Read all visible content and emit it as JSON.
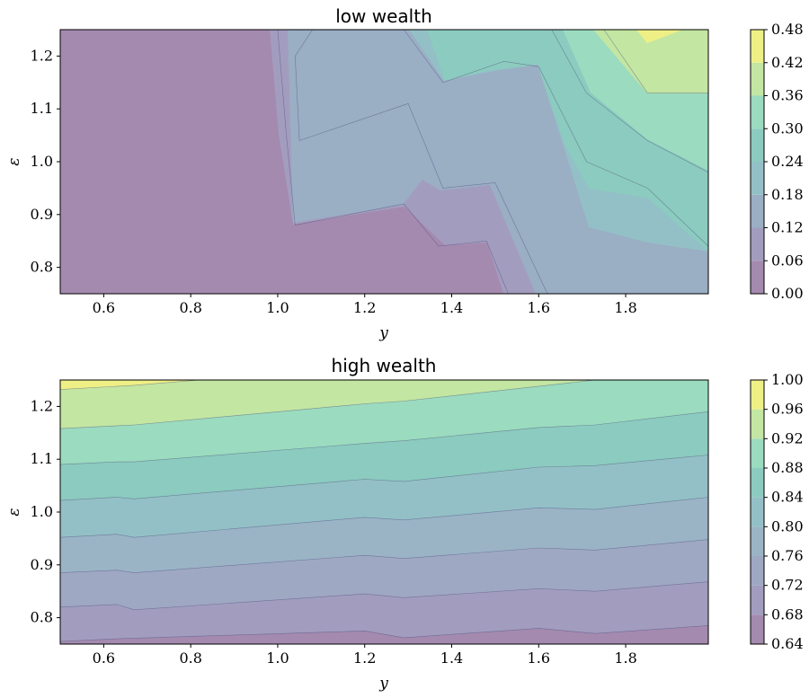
{
  "chart_data": [
    {
      "type": "contour",
      "title": "low wealth",
      "xlabel": "y",
      "ylabel": "ε",
      "xlim": [
        0.5,
        1.99
      ],
      "ylim": [
        0.75,
        1.25
      ],
      "xticks": [
        "0.6",
        "0.8",
        "1.0",
        "1.2",
        "1.4",
        "1.6",
        "1.8"
      ],
      "yticks": [
        "0.8",
        "0.9",
        "1.0",
        "1.1",
        "1.2"
      ],
      "colorbar": {
        "levels": [
          0.0,
          0.06,
          0.12,
          0.18,
          0.24,
          0.3,
          0.36,
          0.42,
          0.48
        ],
        "labels": [
          "0.00",
          "0.06",
          "0.12",
          "0.18",
          "0.24",
          "0.30",
          "0.36",
          "0.42",
          "0.48"
        ],
        "colors": [
          "#a48aaf",
          "#a29dbf",
          "#9aaec4",
          "#93c0c6",
          "#8ccbbf",
          "#9bdbbf",
          "#c3e6a2",
          "#eef086"
        ]
      },
      "contour_lines": [
        [
          [
            1.0,
            1.25
          ],
          [
            1.02,
            1.05
          ],
          [
            1.04,
            0.88
          ],
          [
            1.29,
            0.92
          ],
          [
            1.37,
            0.84
          ],
          [
            1.48,
            0.85
          ],
          [
            1.53,
            0.75
          ]
        ],
        [
          [
            1.08,
            1.25
          ],
          [
            1.04,
            1.2
          ],
          [
            1.05,
            1.04
          ],
          [
            1.3,
            1.11
          ],
          [
            1.38,
            0.95
          ],
          [
            1.5,
            0.96
          ],
          [
            1.62,
            0.75
          ]
        ],
        [
          [
            1.29,
            1.25
          ],
          [
            1.38,
            1.15
          ],
          [
            1.52,
            1.19
          ],
          [
            1.6,
            1.18
          ],
          [
            1.71,
            1.0
          ],
          [
            1.85,
            0.95
          ],
          [
            1.99,
            0.84
          ]
        ],
        [
          [
            1.63,
            1.25
          ],
          [
            1.71,
            1.13
          ],
          [
            1.85,
            1.04
          ],
          [
            1.99,
            0.98
          ]
        ],
        [
          [
            1.75,
            1.25
          ],
          [
            1.85,
            1.13
          ],
          [
            1.99,
            1.13
          ]
        ],
        [
          [
            1.9,
            1.25
          ],
          [
            1.99,
            1.25
          ]
        ]
      ]
    },
    {
      "type": "contour",
      "title": "high wealth",
      "xlabel": "y",
      "ylabel": "ε",
      "xlim": [
        0.5,
        1.99
      ],
      "ylim": [
        0.75,
        1.25
      ],
      "xticks": [
        "0.6",
        "0.8",
        "1.0",
        "1.2",
        "1.4",
        "1.6",
        "1.8"
      ],
      "yticks": [
        "0.8",
        "0.9",
        "1.0",
        "1.1",
        "1.2"
      ],
      "colorbar": {
        "levels": [
          0.64,
          0.68,
          0.72,
          0.76,
          0.8,
          0.84,
          0.88,
          0.92,
          0.96,
          1.0
        ],
        "labels": [
          "0.64",
          "0.68",
          "0.72",
          "0.76",
          "0.80",
          "0.84",
          "0.88",
          "0.92",
          "0.96",
          "1.00"
        ],
        "colors": [
          "#a48aaf",
          "#a29dbf",
          "#9fa8c3",
          "#9ab4c6",
          "#93c0c6",
          "#8ccbbf",
          "#9bdbbf",
          "#c3e6a2",
          "#eef086"
        ]
      },
      "contour_lines": [
        [
          [
            0.5,
            0.755
          ],
          [
            0.63,
            0.76
          ],
          [
            1.2,
            0.775
          ],
          [
            1.29,
            0.762
          ],
          [
            1.6,
            0.78
          ],
          [
            1.73,
            0.77
          ],
          [
            1.99,
            0.785
          ]
        ],
        [
          [
            0.5,
            0.82
          ],
          [
            0.63,
            0.825
          ],
          [
            0.67,
            0.815
          ],
          [
            1.2,
            0.845
          ],
          [
            1.29,
            0.838
          ],
          [
            1.6,
            0.855
          ],
          [
            1.73,
            0.85
          ],
          [
            1.99,
            0.868
          ]
        ],
        [
          [
            0.5,
            0.885
          ],
          [
            0.63,
            0.89
          ],
          [
            0.67,
            0.885
          ],
          [
            1.2,
            0.918
          ],
          [
            1.29,
            0.912
          ],
          [
            1.6,
            0.932
          ],
          [
            1.73,
            0.928
          ],
          [
            1.99,
            0.948
          ]
        ],
        [
          [
            0.5,
            0.952
          ],
          [
            0.63,
            0.958
          ],
          [
            0.67,
            0.952
          ],
          [
            1.2,
            0.99
          ],
          [
            1.29,
            0.985
          ],
          [
            1.6,
            1.008
          ],
          [
            1.73,
            1.005
          ],
          [
            1.99,
            1.028
          ]
        ],
        [
          [
            0.5,
            1.022
          ],
          [
            0.63,
            1.028
          ],
          [
            0.67,
            1.025
          ],
          [
            1.2,
            1.062
          ],
          [
            1.29,
            1.058
          ],
          [
            1.6,
            1.085
          ],
          [
            1.73,
            1.088
          ],
          [
            1.99,
            1.108
          ]
        ],
        [
          [
            0.5,
            1.09
          ],
          [
            0.63,
            1.095
          ],
          [
            0.67,
            1.095
          ],
          [
            1.2,
            1.13
          ],
          [
            1.29,
            1.135
          ],
          [
            1.6,
            1.16
          ],
          [
            1.73,
            1.165
          ],
          [
            1.99,
            1.19
          ]
        ],
        [
          [
            0.5,
            1.158
          ],
          [
            0.67,
            1.165
          ],
          [
            1.2,
            1.205
          ],
          [
            1.29,
            1.21
          ],
          [
            1.73,
            1.25
          ]
        ],
        [
          [
            0.5,
            1.232
          ],
          [
            0.67,
            1.24
          ],
          [
            0.82,
            1.25
          ]
        ]
      ]
    }
  ]
}
